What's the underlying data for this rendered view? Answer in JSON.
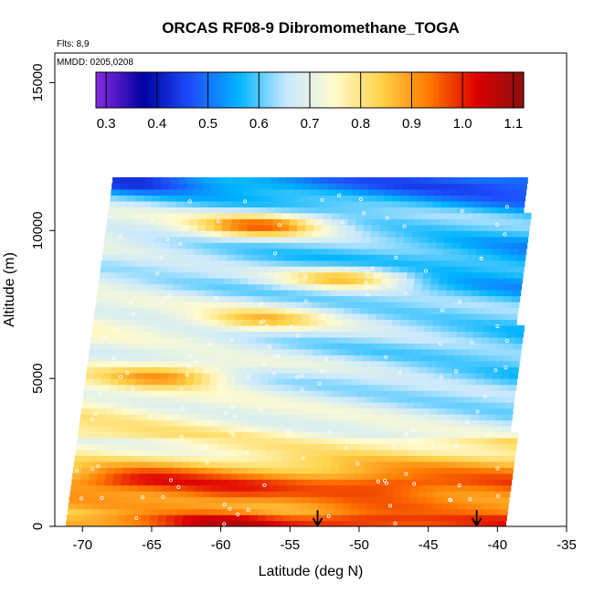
{
  "chart_data": {
    "type": "heatmap",
    "title": "ORCAS RF08-9 Dibromomethane_TOGA",
    "xlabel": "Latitude (deg N)",
    "ylabel": "Altitude (m)",
    "xlim": [
      -72,
      -35
    ],
    "ylim": [
      0,
      16000
    ],
    "x_ticks": [
      -70,
      -65,
      -60,
      -55,
      -50,
      -45,
      -40,
      -35
    ],
    "y_ticks": [
      0,
      5000,
      10000,
      15000
    ],
    "annotations": [
      "Flts: 8,9",
      "MMDD: 0205,0208"
    ],
    "colorbar": {
      "ticks": [
        0.3,
        0.4,
        0.5,
        0.6,
        0.7,
        0.8,
        0.9,
        1.0,
        1.1
      ],
      "range": [
        0.28,
        1.12
      ],
      "colors": [
        "#8a2be2",
        "#0000a0",
        "#1e4fff",
        "#00b4ff",
        "#c8e8ff",
        "#fffbd0",
        "#ffd34a",
        "#ff7a00",
        "#dd0000",
        "#8b1010"
      ]
    },
    "arrow_markers_lat": [
      -53,
      -41.5
    ],
    "altitude_profile": [
      {
        "alt": 200,
        "value": 0.95
      },
      {
        "alt": 500,
        "value": 0.88
      },
      {
        "alt": 1000,
        "value": 0.9
      },
      {
        "alt": 1500,
        "value": 0.92
      },
      {
        "alt": 2000,
        "value": 0.86
      },
      {
        "alt": 2500,
        "value": 0.78
      },
      {
        "alt": 3000,
        "value": 0.76
      },
      {
        "alt": 3500,
        "value": 0.72
      },
      {
        "alt": 4000,
        "value": 0.7
      },
      {
        "alt": 4500,
        "value": 0.68
      },
      {
        "alt": 5000,
        "value": 0.66
      },
      {
        "alt": 5500,
        "value": 0.68
      },
      {
        "alt": 6000,
        "value": 0.65
      },
      {
        "alt": 6500,
        "value": 0.66
      },
      {
        "alt": 7000,
        "value": 0.68
      },
      {
        "alt": 7500,
        "value": 0.66
      },
      {
        "alt": 8000,
        "value": 0.62
      },
      {
        "alt": 8500,
        "value": 0.63
      },
      {
        "alt": 9000,
        "value": 0.6
      },
      {
        "alt": 9500,
        "value": 0.62
      },
      {
        "alt": 10000,
        "value": 0.66
      },
      {
        "alt": 10500,
        "value": 0.65
      },
      {
        "alt": 11000,
        "value": 0.58
      },
      {
        "alt": 11500,
        "value": 0.52
      }
    ],
    "hot_spots": [
      {
        "lat": -57,
        "alt": 10200,
        "value": 0.92
      },
      {
        "lat": -51,
        "alt": 8400,
        "value": 0.85
      },
      {
        "lat": -57,
        "alt": 7000,
        "value": 0.84
      },
      {
        "lat": -64,
        "alt": 5100,
        "value": 0.86
      },
      {
        "lat": -66,
        "alt": 1600,
        "value": 1.04
      },
      {
        "lat": -60,
        "alt": 1200,
        "value": 1.0
      },
      {
        "lat": -48,
        "alt": 1400,
        "value": 0.98
      },
      {
        "lat": -60,
        "alt": 200,
        "value": 1.05
      },
      {
        "lat": -50,
        "alt": 300,
        "value": 1.0
      },
      {
        "lat": -66,
        "alt": 11700,
        "value": 0.4
      }
    ]
  }
}
